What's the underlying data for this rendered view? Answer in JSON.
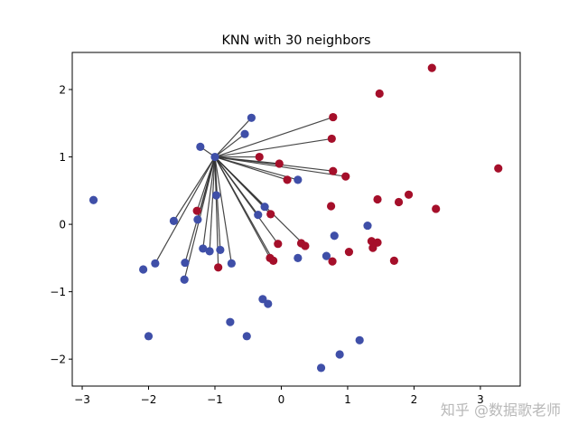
{
  "chart_data": {
    "type": "scatter",
    "title": "KNN with 30 neighbors",
    "xlabel": "",
    "ylabel": "",
    "xlim": [
      -3.15,
      3.6
    ],
    "ylim": [
      -2.4,
      2.55
    ],
    "xticks": [
      -3,
      -2,
      -1,
      0,
      1,
      2,
      3
    ],
    "yticks": [
      -2,
      -1,
      0,
      1,
      2
    ],
    "tick_labels": {
      "x": [
        "−3",
        "−2",
        "−1",
        "0",
        "1",
        "2",
        "3"
      ],
      "y": [
        "−2",
        "−1",
        "0",
        "1",
        "2"
      ]
    },
    "grid": false,
    "query_point": [
      -1.0,
      1.0
    ],
    "colors": {
      "blue": "#3f4fa8",
      "red": "#a50f2a",
      "line": "#333333"
    },
    "series": [
      {
        "class": "blue",
        "color": "#3f4fa8",
        "points": [
          [
            -1.0,
            1.0
          ],
          [
            -1.22,
            1.15
          ],
          [
            -0.45,
            1.58
          ],
          [
            -0.55,
            1.34
          ],
          [
            -2.83,
            0.36
          ],
          [
            -1.62,
            0.05
          ],
          [
            -1.26,
            0.07
          ],
          [
            -0.98,
            0.43
          ],
          [
            -1.18,
            -0.36
          ],
          [
            -1.08,
            -0.4
          ],
          [
            -0.92,
            -0.38
          ],
          [
            -0.75,
            -0.58
          ],
          [
            -1.45,
            -0.57
          ],
          [
            -1.9,
            -0.58
          ],
          [
            -2.08,
            -0.67
          ],
          [
            -1.46,
            -0.82
          ],
          [
            -0.35,
            0.14
          ],
          [
            -0.25,
            0.26
          ],
          [
            0.25,
            0.66
          ],
          [
            0.8,
            -0.17
          ],
          [
            1.3,
            -0.02
          ],
          [
            0.25,
            -0.5
          ],
          [
            0.68,
            -0.47
          ],
          [
            -0.28,
            -1.11
          ],
          [
            -0.2,
            -1.18
          ],
          [
            -0.77,
            -1.45
          ],
          [
            -2.0,
            -1.66
          ],
          [
            -0.52,
            -1.66
          ],
          [
            1.18,
            -1.72
          ],
          [
            0.88,
            -1.93
          ],
          [
            0.6,
            -2.13
          ]
        ]
      },
      {
        "class": "red",
        "color": "#a50f2a",
        "points": [
          [
            2.27,
            2.32
          ],
          [
            1.48,
            1.94
          ],
          [
            0.78,
            1.59
          ],
          [
            0.76,
            1.27
          ],
          [
            3.27,
            0.83
          ],
          [
            -0.33,
            1.0
          ],
          [
            -0.03,
            0.9
          ],
          [
            0.78,
            0.79
          ],
          [
            0.97,
            0.71
          ],
          [
            0.09,
            0.66
          ],
          [
            1.92,
            0.44
          ],
          [
            1.45,
            0.37
          ],
          [
            1.77,
            0.33
          ],
          [
            0.75,
            0.27
          ],
          [
            2.33,
            0.23
          ],
          [
            -1.27,
            0.2
          ],
          [
            -0.16,
            0.15
          ],
          [
            1.36,
            -0.25
          ],
          [
            1.45,
            -0.27
          ],
          [
            1.38,
            -0.35
          ],
          [
            0.3,
            -0.28
          ],
          [
            0.36,
            -0.32
          ],
          [
            -0.05,
            -0.29
          ],
          [
            1.02,
            -0.41
          ],
          [
            -0.17,
            -0.5
          ],
          [
            -0.12,
            -0.54
          ],
          [
            0.77,
            -0.55
          ],
          [
            1.7,
            -0.54
          ],
          [
            -0.95,
            -0.64
          ]
        ]
      }
    ],
    "neighbors": [
      [
        -1.22,
        1.15
      ],
      [
        -0.45,
        1.58
      ],
      [
        -0.55,
        1.34
      ],
      [
        0.78,
        1.59
      ],
      [
        0.76,
        1.27
      ],
      [
        -0.33,
        1.0
      ],
      [
        -0.03,
        0.9
      ],
      [
        0.78,
        0.79
      ],
      [
        0.97,
        0.71
      ],
      [
        0.09,
        0.66
      ],
      [
        0.25,
        0.66
      ],
      [
        -1.62,
        0.05
      ],
      [
        -1.27,
        0.2
      ],
      [
        -1.26,
        0.07
      ],
      [
        -0.98,
        0.43
      ],
      [
        -0.35,
        0.14
      ],
      [
        -0.25,
        0.26
      ],
      [
        -0.16,
        0.15
      ],
      [
        -1.18,
        -0.36
      ],
      [
        -1.08,
        -0.4
      ],
      [
        -0.92,
        -0.38
      ],
      [
        -0.75,
        -0.58
      ],
      [
        -1.45,
        -0.57
      ],
      [
        -1.9,
        -0.58
      ],
      [
        -1.46,
        -0.82
      ],
      [
        -0.95,
        -0.64
      ],
      [
        -0.17,
        -0.5
      ],
      [
        -0.12,
        -0.54
      ],
      [
        -0.05,
        -0.29
      ],
      [
        0.36,
        -0.32
      ]
    ]
  },
  "watermark": "知乎 @数据歌老师"
}
